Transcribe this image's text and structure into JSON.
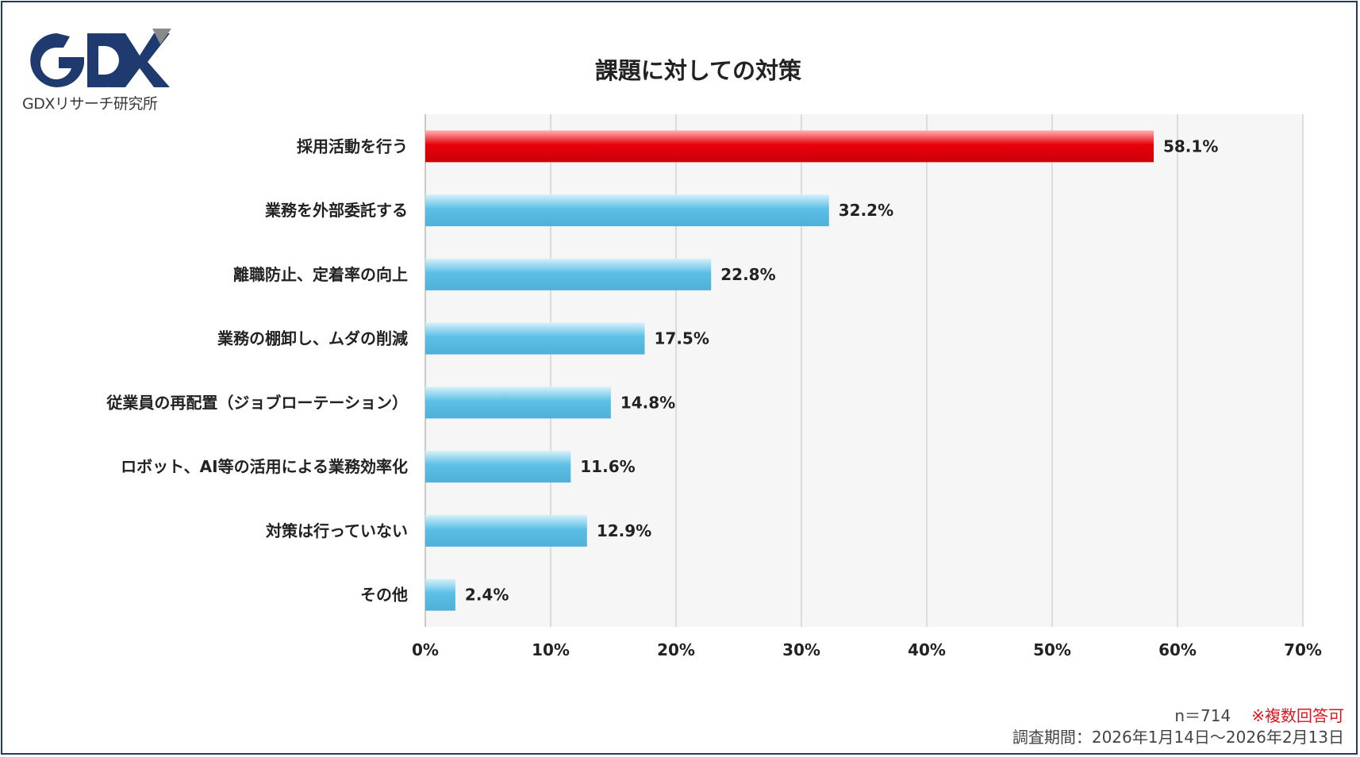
{
  "logo": {
    "mark": "GDX",
    "caption": "GDXリサーチ研究所"
  },
  "chart_data": {
    "type": "bar",
    "orientation": "horizontal",
    "title": "課題に対しての対策",
    "categories": [
      "採用活動を行う",
      "業務を外部委託する",
      "離職防止、定着率の向上",
      "業務の棚卸し、ムダの削減",
      "従業員の再配置（ジョブローテーション）",
      "ロボット、AI等の活用による業務効率化",
      "対策は行っていない",
      "その他"
    ],
    "values": [
      58.1,
      32.2,
      22.8,
      17.5,
      14.8,
      11.6,
      12.9,
      2.4
    ],
    "value_labels": [
      "58.1%",
      "32.2%",
      "22.8%",
      "17.5%",
      "14.8%",
      "11.6%",
      "12.9%",
      "2.4%"
    ],
    "xlim": [
      0,
      70
    ],
    "x_ticks": [
      "0%",
      "10%",
      "20%",
      "30%",
      "40%",
      "50%",
      "60%",
      "70%"
    ],
    "grid": true,
    "highlight_index": 0,
    "colors": {
      "highlight": "#e8000b",
      "bar": "#5bbfe6",
      "plot_bg": "#f6f6f6",
      "grid": "#d4d4d4"
    }
  },
  "footer": {
    "n": "n＝714",
    "note": "※複数回答可",
    "period": "調査期間：2026年1月14日〜2026年2月13日"
  }
}
